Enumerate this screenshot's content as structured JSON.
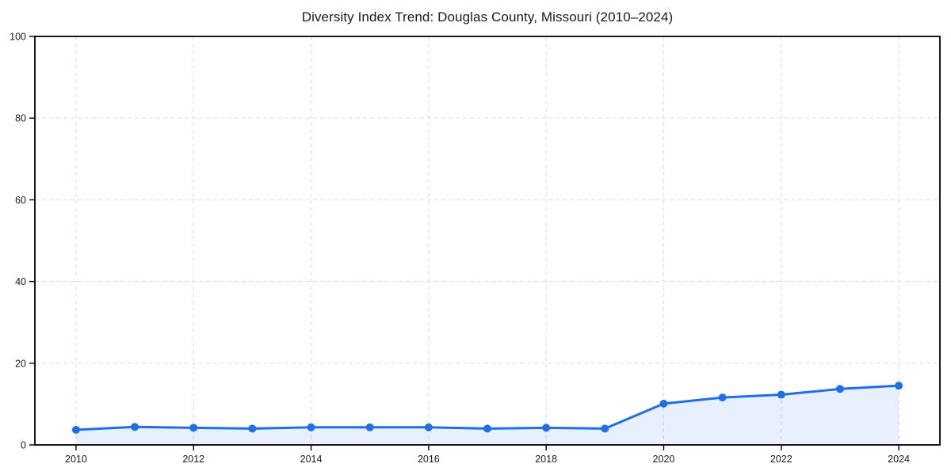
{
  "chart_data": {
    "type": "area",
    "title": "Diversity Index Trend: Douglas County, Missouri (2010–2024)",
    "x": [
      2010,
      2011,
      2012,
      2013,
      2014,
      2015,
      2016,
      2017,
      2018,
      2019,
      2020,
      2021,
      2022,
      2023,
      2024
    ],
    "series": [
      {
        "name": "Diversity Index",
        "values": [
          3.7,
          4.4,
          4.2,
          4.0,
          4.3,
          4.3,
          4.3,
          4.0,
          4.2,
          4.0,
          10.1,
          11.6,
          12.3,
          13.7,
          14.5
        ]
      }
    ],
    "xlabel": "",
    "ylabel": "",
    "xlim": [
      2009.3,
      2024.7
    ],
    "ylim": [
      0,
      100
    ],
    "x_ticks": [
      2010,
      2012,
      2014,
      2016,
      2018,
      2020,
      2022,
      2024
    ],
    "y_ticks": [
      0,
      20,
      40,
      60,
      80,
      100
    ],
    "grid": "dashed, both axes",
    "legend": "none",
    "marker": "circle",
    "colors": {
      "line": "#1e6fe8",
      "fill": "rgba(30, 111, 232, 0.10)",
      "grid": "#e0e0e0",
      "axis": "#000000",
      "text": "#1a1a1a",
      "background": "#ffffff"
    }
  }
}
